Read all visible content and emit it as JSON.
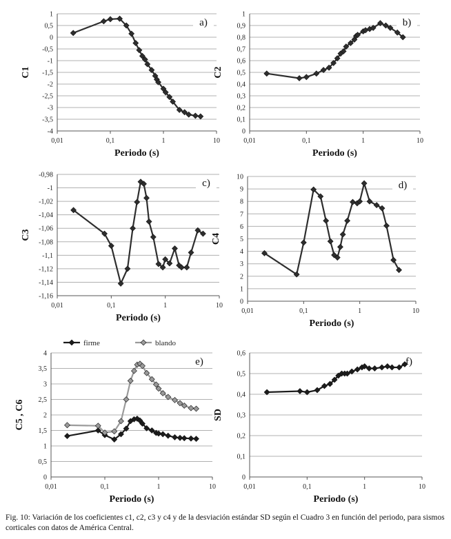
{
  "caption": "Fig. 10: Variación de los coeficientes c1, c2, c3 y c4 y de la desviación estándar SD según el Cuadro 3 en función del periodo, para sismos corticales con datos de América Central.",
  "chart_data": [
    {
      "type": "line",
      "panel": "a)",
      "xlabel": "Periodo (s)",
      "ylabel": "C1",
      "xscale": "log",
      "xlim": [
        0.01,
        10
      ],
      "ylim": [
        -4,
        1
      ],
      "xticks": [
        "0,01",
        "0,1",
        "1",
        "10"
      ],
      "yticks": [
        "1",
        "0,5",
        "0",
        "-0,5",
        "-1",
        "-1,5",
        "-2",
        "-2,5",
        "-3",
        "-3,5",
        "-4"
      ],
      "grid": true,
      "marker": "diamond",
      "series": [
        {
          "color": "#2e2e2e",
          "x": [
            0.02,
            0.075,
            0.1,
            0.15,
            0.2,
            0.25,
            0.3,
            0.35,
            0.4,
            0.45,
            0.5,
            0.6,
            0.7,
            0.75,
            0.8,
            1.0,
            1.1,
            1.3,
            1.5,
            2.0,
            2.5,
            3.0,
            4.0,
            5.0
          ],
          "y": [
            0.18,
            0.68,
            0.77,
            0.79,
            0.5,
            0.15,
            -0.25,
            -0.55,
            -0.8,
            -0.95,
            -1.15,
            -1.4,
            -1.65,
            -1.8,
            -1.92,
            -2.2,
            -2.35,
            -2.55,
            -2.75,
            -3.1,
            -3.2,
            -3.3,
            -3.35,
            -3.38
          ]
        }
      ]
    },
    {
      "type": "line",
      "panel": "b)",
      "xlabel": "Periodo (s)",
      "ylabel": "C2",
      "xscale": "log",
      "xlim": [
        0.01,
        10
      ],
      "ylim": [
        0,
        1
      ],
      "xticks": [
        "0,01",
        "0,1",
        "1",
        "10"
      ],
      "yticks": [
        "1",
        "0,9",
        "0,8",
        "0,7",
        "0,6",
        "0,5",
        "0,4",
        "0,3",
        "0,2",
        "0,1",
        "0"
      ],
      "grid": true,
      "marker": "diamond",
      "series": [
        {
          "color": "#2e2e2e",
          "x": [
            0.02,
            0.075,
            0.1,
            0.15,
            0.2,
            0.25,
            0.3,
            0.35,
            0.4,
            0.45,
            0.5,
            0.6,
            0.7,
            0.75,
            0.8,
            1.0,
            1.1,
            1.3,
            1.5,
            2.0,
            2.5,
            3.0,
            4.0,
            5.0
          ],
          "y": [
            0.49,
            0.45,
            0.46,
            0.49,
            0.52,
            0.54,
            0.58,
            0.62,
            0.66,
            0.68,
            0.72,
            0.75,
            0.78,
            0.81,
            0.82,
            0.85,
            0.86,
            0.87,
            0.88,
            0.92,
            0.9,
            0.88,
            0.84,
            0.8
          ]
        }
      ]
    },
    {
      "type": "line",
      "panel": "c)",
      "xlabel": "Periodo (s)",
      "ylabel": "C3",
      "xscale": "log",
      "xlim": [
        0.01,
        10
      ],
      "ylim": [
        -1.16,
        -0.98
      ],
      "xticks": [
        "0,01",
        "0,1",
        "1",
        "10"
      ],
      "yticks": [
        "-0,98",
        "-1",
        "-1,02",
        "-1,04",
        "-1,06",
        "-1,08",
        "-1,1",
        "-1,12",
        "-1,14",
        "-1,16"
      ],
      "grid": true,
      "marker": "diamond",
      "series": [
        {
          "color": "#2e2e2e",
          "x": [
            0.02,
            0.075,
            0.1,
            0.15,
            0.2,
            0.25,
            0.3,
            0.35,
            0.4,
            0.45,
            0.5,
            0.6,
            0.75,
            0.9,
            1.0,
            1.2,
            1.5,
            1.8,
            2.0,
            2.5,
            3.0,
            4.0,
            5.0
          ],
          "y": [
            -1.033,
            -1.068,
            -1.086,
            -1.142,
            -1.12,
            -1.06,
            -1.021,
            -0.991,
            -0.994,
            -1.015,
            -1.05,
            -1.073,
            -1.113,
            -1.118,
            -1.106,
            -1.112,
            -1.09,
            -1.115,
            -1.118,
            -1.118,
            -1.096,
            -1.063,
            -1.068
          ]
        }
      ]
    },
    {
      "type": "line",
      "panel": "d)",
      "xlabel": "Periodo (s)",
      "ylabel": "C4",
      "xscale": "log",
      "xlim": [
        0.01,
        10
      ],
      "ylim": [
        0,
        10
      ],
      "xticks": [
        "0,01",
        "0,1",
        "1",
        "10"
      ],
      "yticks": [
        "10",
        "9",
        "8",
        "7",
        "6",
        "5",
        "4",
        "3",
        "2",
        "1",
        "0"
      ],
      "grid": true,
      "marker": "diamond",
      "series": [
        {
          "color": "#2e2e2e",
          "x": [
            0.02,
            0.075,
            0.1,
            0.15,
            0.2,
            0.25,
            0.3,
            0.35,
            0.4,
            0.45,
            0.5,
            0.6,
            0.75,
            0.9,
            1.0,
            1.2,
            1.5,
            2.0,
            2.5,
            3.0,
            4.0,
            5.0
          ],
          "y": [
            3.85,
            2.15,
            4.7,
            8.95,
            8.4,
            6.45,
            4.8,
            3.7,
            3.5,
            4.35,
            5.35,
            6.45,
            7.95,
            7.85,
            8.0,
            9.45,
            8.0,
            7.7,
            7.45,
            6.05,
            3.3,
            2.5
          ]
        }
      ]
    },
    {
      "type": "line",
      "panel": "e)",
      "xlabel": "Periodo (s)",
      "ylabel": "C5 , C6",
      "xscale": "log",
      "xlim": [
        0.01,
        10
      ],
      "ylim": [
        0,
        4
      ],
      "xticks": [
        "0,01",
        "0,1",
        "1",
        "10"
      ],
      "yticks": [
        "4",
        "3,5",
        "3",
        "2,5",
        "2",
        "1,5",
        "1",
        "0,5",
        "0"
      ],
      "grid": true,
      "marker": "diamond",
      "legend": "top",
      "series": [
        {
          "name": "firme",
          "color": "#1c1c1c",
          "x": [
            0.02,
            0.075,
            0.1,
            0.15,
            0.2,
            0.25,
            0.3,
            0.35,
            0.4,
            0.45,
            0.5,
            0.6,
            0.75,
            0.9,
            1.0,
            1.2,
            1.5,
            2.0,
            2.5,
            3.0,
            4.0,
            5.0
          ],
          "y": [
            1.32,
            1.5,
            1.35,
            1.21,
            1.38,
            1.56,
            1.8,
            1.86,
            1.88,
            1.82,
            1.72,
            1.57,
            1.5,
            1.42,
            1.4,
            1.38,
            1.33,
            1.28,
            1.26,
            1.25,
            1.24,
            1.23
          ]
        },
        {
          "name": "blando",
          "color": "#9a9a9a",
          "x": [
            0.02,
            0.075,
            0.1,
            0.15,
            0.2,
            0.25,
            0.3,
            0.35,
            0.4,
            0.45,
            0.5,
            0.6,
            0.75,
            0.9,
            1.0,
            1.2,
            1.5,
            2.0,
            2.5,
            3.0,
            4.0,
            5.0
          ],
          "y": [
            1.67,
            1.65,
            1.43,
            1.47,
            1.8,
            2.5,
            3.1,
            3.42,
            3.62,
            3.65,
            3.58,
            3.35,
            3.15,
            2.98,
            2.85,
            2.7,
            2.58,
            2.48,
            2.38,
            2.3,
            2.22,
            2.2
          ]
        }
      ]
    },
    {
      "type": "line",
      "panel": "f)",
      "xlabel": "Periodo (s)",
      "ylabel": "SD",
      "xscale": "log",
      "xlim": [
        0.01,
        10
      ],
      "ylim": [
        0,
        0.6
      ],
      "xticks": [
        "0,01",
        "0,1",
        "1",
        "10"
      ],
      "yticks": [
        "0,6",
        "0,5",
        "0,4",
        "0,3",
        "0,2",
        "0,1",
        "0"
      ],
      "grid": true,
      "marker": "diamond",
      "series": [
        {
          "color": "#1c1c1c",
          "x": [
            0.02,
            0.075,
            0.1,
            0.15,
            0.2,
            0.25,
            0.3,
            0.35,
            0.4,
            0.45,
            0.5,
            0.6,
            0.75,
            0.9,
            1.0,
            1.2,
            1.5,
            2.0,
            2.5,
            3.0,
            4.0,
            5.0
          ],
          "y": [
            0.41,
            0.415,
            0.41,
            0.42,
            0.44,
            0.45,
            0.47,
            0.49,
            0.5,
            0.5,
            0.5,
            0.51,
            0.52,
            0.53,
            0.535,
            0.525,
            0.525,
            0.53,
            0.535,
            0.53,
            0.53,
            0.545
          ]
        }
      ]
    }
  ]
}
